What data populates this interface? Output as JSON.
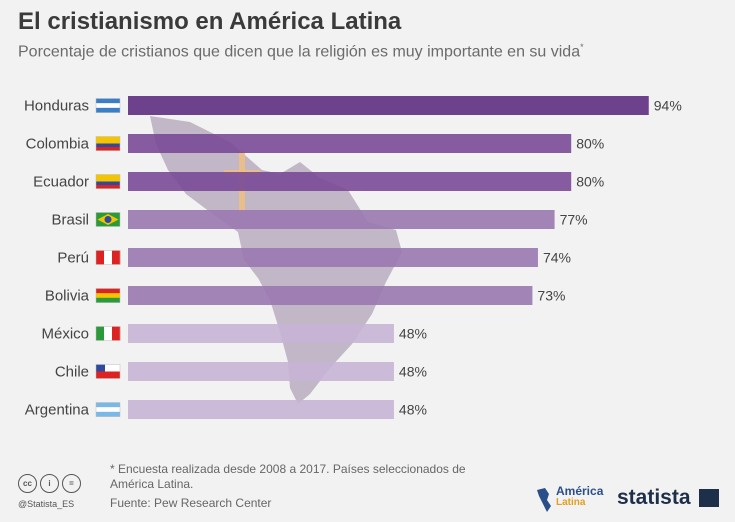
{
  "header": {
    "title": "El cristianismo en América Latina",
    "subtitle": "Porcentaje de cristianos que dicen que la religión es muy importante en su vida",
    "subtitle_mark": "*"
  },
  "chart_data": {
    "type": "bar",
    "orientation": "horizontal",
    "title": "El cristianismo en América Latina",
    "categories": [
      "Honduras",
      "Colombia",
      "Ecuador",
      "Brasil",
      "Perú",
      "Bolivia",
      "México",
      "Chile",
      "Argentina"
    ],
    "values": [
      94,
      80,
      80,
      77,
      74,
      73,
      48,
      48,
      48
    ],
    "value_labels": [
      "94%",
      "80%",
      "80%",
      "77%",
      "74%",
      "73%",
      "48%",
      "48%",
      "48%"
    ],
    "bar_colors": [
      "#5f2d82",
      "#7a4a96",
      "#7a4a96",
      "#9a78b0",
      "#9a78b0",
      "#9a78b0",
      "#c8b4d6",
      "#c8b4d6",
      "#c8b4d6"
    ],
    "xlim": [
      0,
      100
    ],
    "grid": false,
    "legend": "none"
  },
  "flags": [
    "honduras-flag-icon",
    "colombia-flag-icon",
    "ecuador-flag-icon",
    "brazil-flag-icon",
    "peru-flag-icon",
    "bolivia-flag-icon",
    "mexico-flag-icon",
    "chile-flag-icon",
    "argentina-flag-icon"
  ],
  "footer": {
    "footnote": "* Encuesta realizada desde 2008 a 2017. Países seleccionados de América Latina.",
    "source": "Fuente: Pew Research Center",
    "handle": "@Statista_ES",
    "brand": "statista",
    "partner_line1": "América",
    "partner_line2": "Latina"
  }
}
